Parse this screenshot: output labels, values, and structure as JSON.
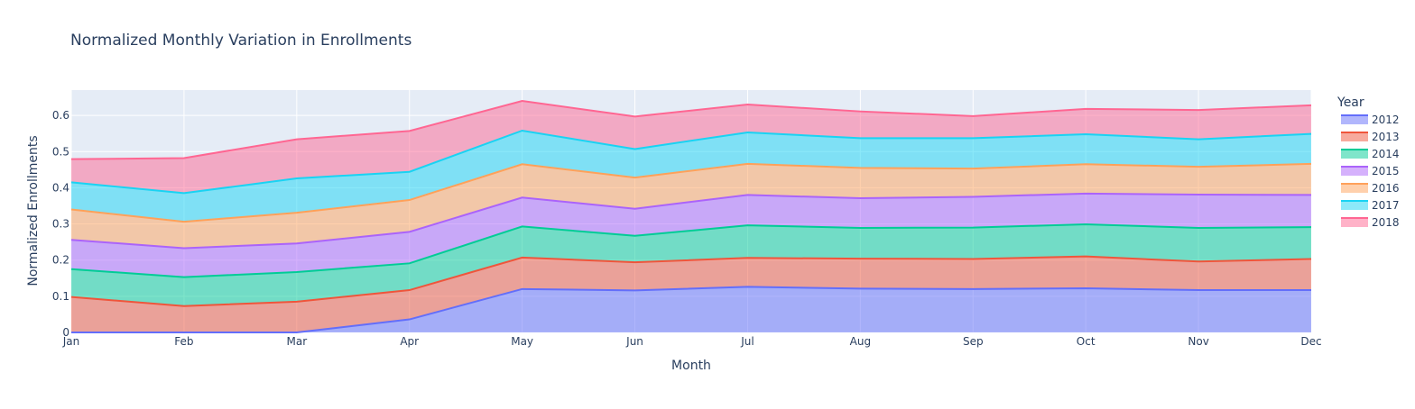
{
  "chart_data": {
    "type": "area",
    "stacked": true,
    "title": "Normalized Monthly Variation in Enrollments",
    "xlabel": "Month",
    "ylabel": "Normalized Enrollments",
    "categories": [
      "Jan",
      "Feb",
      "Mar",
      "Apr",
      "May",
      "Jun",
      "Jul",
      "Aug",
      "Sep",
      "Oct",
      "Nov",
      "Dec"
    ],
    "ylim": [
      0,
      0.67
    ],
    "yticks": [
      0,
      0.1,
      0.2,
      0.3,
      0.4,
      0.5,
      0.6
    ],
    "ytick_labels": [
      "0",
      "0.1",
      "0.2",
      "0.3",
      "0.4",
      "0.5",
      "0.6"
    ],
    "grid": true,
    "plot_background": "#e5ecf6",
    "legend": {
      "title": "Year",
      "position": "right"
    },
    "series": [
      {
        "name": "2012",
        "color": "#636efa",
        "values": [
          0,
          0,
          0,
          0.036,
          0.12,
          0.116,
          0.126,
          0.121,
          0.12,
          0.122,
          0.117,
          0.117
        ]
      },
      {
        "name": "2013",
        "color": "#ef553b",
        "values": [
          0.098,
          0.073,
          0.085,
          0.081,
          0.087,
          0.078,
          0.08,
          0.083,
          0.083,
          0.088,
          0.079,
          0.086
        ]
      },
      {
        "name": "2014",
        "color": "#00cc96",
        "values": [
          0.077,
          0.08,
          0.082,
          0.074,
          0.086,
          0.073,
          0.09,
          0.085,
          0.087,
          0.089,
          0.093,
          0.088
        ]
      },
      {
        "name": "2015",
        "color": "#ab63fa",
        "values": [
          0.081,
          0.08,
          0.079,
          0.087,
          0.08,
          0.075,
          0.084,
          0.082,
          0.085,
          0.085,
          0.092,
          0.089
        ]
      },
      {
        "name": "2016",
        "color": "#ffa15a",
        "values": [
          0.084,
          0.073,
          0.085,
          0.088,
          0.092,
          0.086,
          0.086,
          0.084,
          0.078,
          0.081,
          0.077,
          0.086
        ]
      },
      {
        "name": "2017",
        "color": "#19d3f3",
        "values": [
          0.075,
          0.079,
          0.095,
          0.078,
          0.093,
          0.079,
          0.087,
          0.082,
          0.084,
          0.083,
          0.076,
          0.083
        ]
      },
      {
        "name": "2018",
        "color": "#ff6692",
        "values": [
          0.064,
          0.097,
          0.108,
          0.113,
          0.082,
          0.09,
          0.077,
          0.074,
          0.061,
          0.07,
          0.081,
          0.079
        ]
      }
    ]
  }
}
